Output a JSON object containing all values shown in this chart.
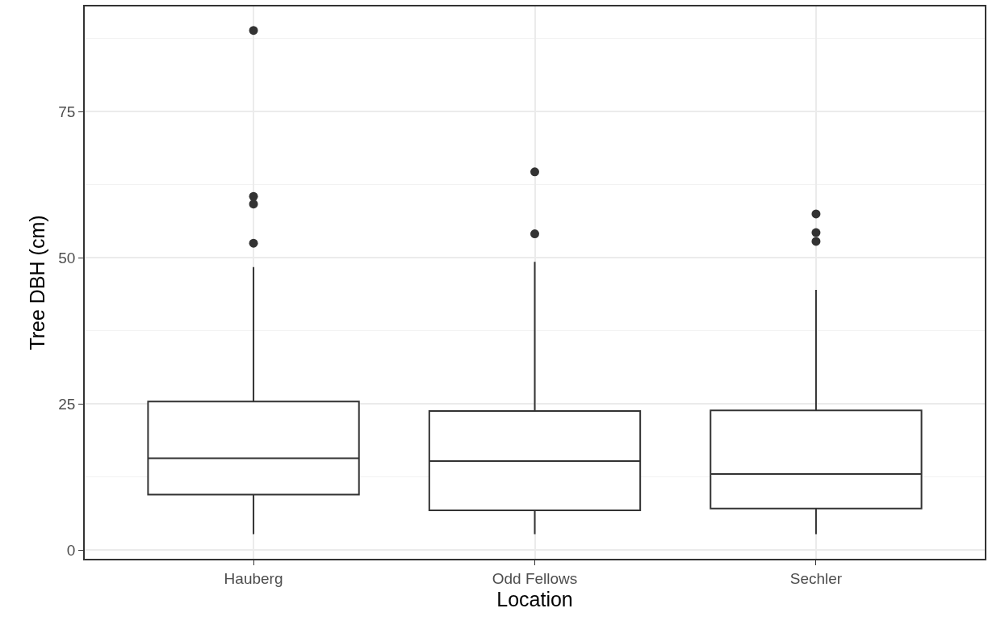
{
  "chart_data": {
    "type": "box",
    "xlabel": "Location",
    "ylabel": "Tree DBH (cm)",
    "categories": [
      "Hauberg",
      "Odd Fellows",
      "Sechler"
    ],
    "boxes": [
      {
        "low": 2.7,
        "q1": 9.5,
        "median": 15.7,
        "q3": 25.4,
        "high": 48.4,
        "outliers": [
          88.9,
          60.5,
          59.2,
          52.5
        ]
      },
      {
        "low": 2.7,
        "q1": 6.8,
        "median": 15.2,
        "q3": 23.8,
        "high": 49.3,
        "outliers": [
          64.7,
          54.1
        ]
      },
      {
        "low": 2.7,
        "q1": 7.1,
        "median": 13.0,
        "q3": 23.9,
        "high": 44.5,
        "outliers": [
          57.5,
          54.3,
          52.8
        ]
      }
    ],
    "color": "#333333",
    "ylim": [
      -1.5,
      93
    ],
    "yticks": [
      0,
      25,
      50,
      75
    ],
    "grid": true
  }
}
